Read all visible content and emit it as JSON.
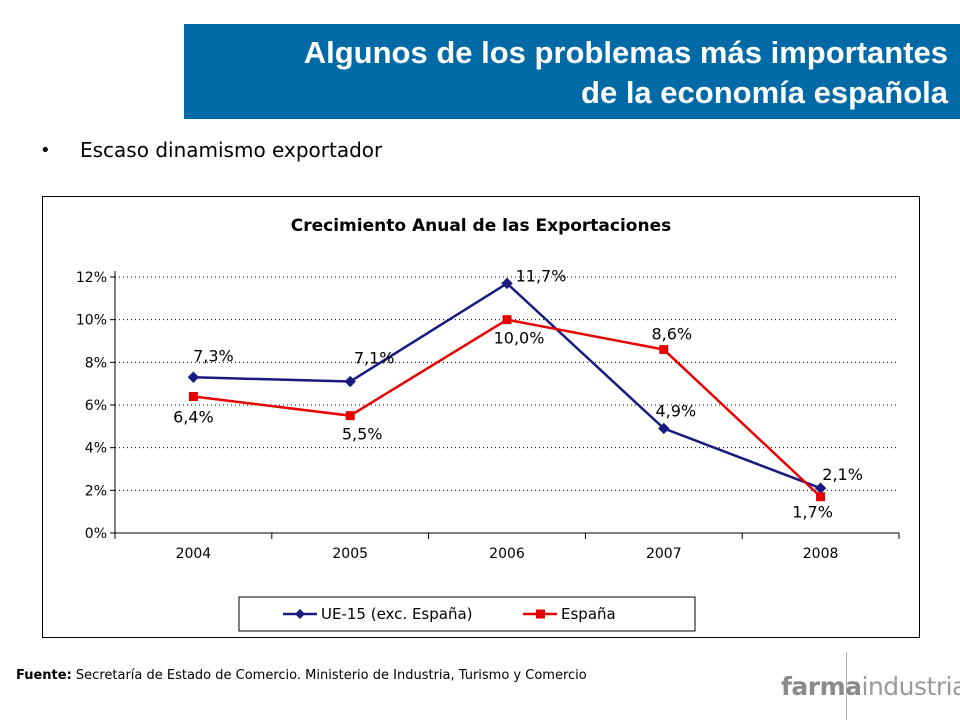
{
  "header": {
    "title_line1": "Algunos de los problemas más importantes",
    "title_line2": "de la economía española",
    "accent_color": "#006aa6"
  },
  "bullet": {
    "text": "Escaso dinamismo exportador"
  },
  "chart_data": {
    "type": "line",
    "title": "Crecimiento Anual de las Exportaciones",
    "categories": [
      "2004",
      "2005",
      "2006",
      "2007",
      "2008"
    ],
    "y_ticks": [
      "0%",
      "2%",
      "4%",
      "6%",
      "8%",
      "10%",
      "12%"
    ],
    "ylim": [
      0,
      12
    ],
    "xlabel": "",
    "ylabel": "",
    "grid": "horizontal dotted",
    "legend_position": "bottom",
    "series": [
      {
        "name": "UE-15 (exc. España)",
        "color": "#1a1a80",
        "marker": "diamond",
        "values": [
          7.3,
          7.1,
          11.7,
          4.9,
          2.1
        ],
        "labels": [
          "7,3%",
          "7,1%",
          "11,7%",
          "4,9%",
          "2,1%"
        ]
      },
      {
        "name": "España",
        "color": "#e60000",
        "marker": "square",
        "values": [
          6.4,
          5.5,
          10.0,
          8.6,
          1.7
        ],
        "labels": [
          "6,4%",
          "5,5%",
          "10,0%",
          "8,6%",
          "1,7%"
        ]
      }
    ]
  },
  "footer": {
    "source_label": "Fuente:",
    "source_text": " Secretaría de Estado de Comercio. Ministerio de Industria, Turismo y Comercio",
    "logo_bold": "farma",
    "logo_rest": "industria"
  }
}
